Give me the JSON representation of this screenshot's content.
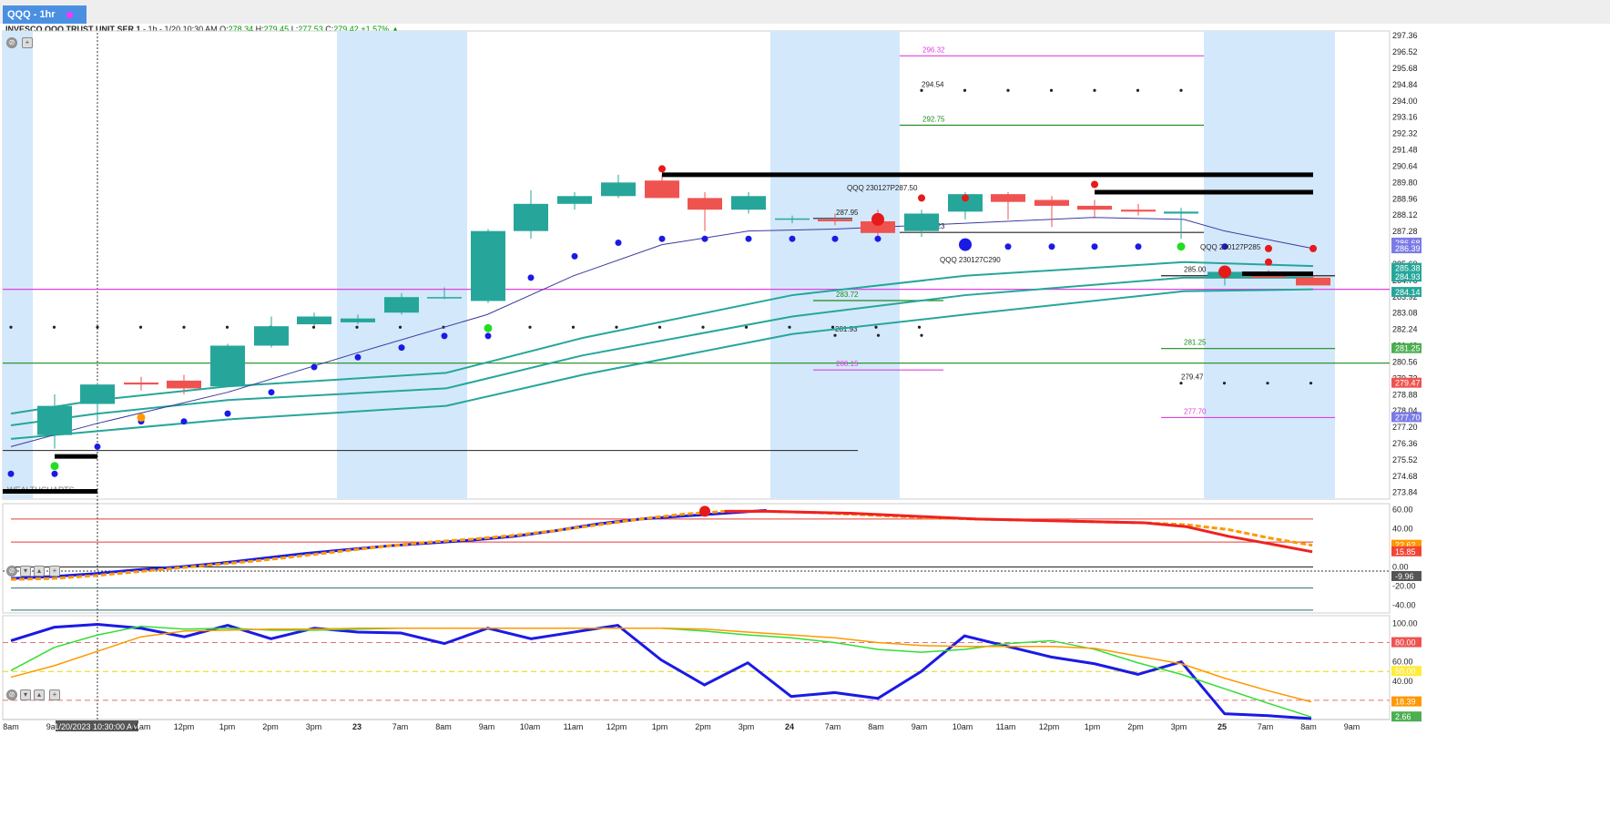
{
  "tab": {
    "label": "QQQ - 1hr"
  },
  "info": {
    "name": "INVESCO QQQ TRUST UNIT SER 1",
    "details": "- 1h - 1/20 10:30 AM O:",
    "open": "278.34",
    "high_label": "H:",
    "high": "279.45",
    "low_label": "L:",
    "low": "277.53",
    "close_label": "C:",
    "close": "279.42",
    "change": "+1.57%",
    "arrow": "▲"
  },
  "watermark": "WEALTHCHARTS",
  "cursor_label": "1/20/2023 10:30:00 AM",
  "colors": {
    "bull": "#26a69a",
    "bear": "#ef5350",
    "shade": "#d3e8fb",
    "magenta": "#e040e0",
    "green": "#1b8a1b"
  },
  "chart_data": [
    {
      "type": "candlestick",
      "y_range": [
        273.5,
        297.6
      ],
      "price_axis_labels": [
        "297.36",
        "296.52",
        "295.68",
        "294.84",
        "294.00",
        "293.16",
        "292.32",
        "291.48",
        "290.64",
        "289.80",
        "288.96",
        "288.12",
        "287.28",
        "286.44",
        "285.60",
        "284.76",
        "283.92",
        "283.08",
        "282.24",
        "281.40",
        "280.56",
        "279.72",
        "278.88",
        "278.04",
        "277.20",
        "276.36",
        "275.52",
        "274.68",
        "273.84"
      ],
      "time_axis_labels": [
        "8am",
        "9am",
        "1/20/2023 10:30:00 AM",
        "11am",
        "12pm",
        "1pm",
        "2pm",
        "3pm",
        "23",
        "7am",
        "8am",
        "9am",
        "10am",
        "11am",
        "12pm",
        "1pm",
        "2pm",
        "3pm",
        "24",
        "7am",
        "8am",
        "9am",
        "10am",
        "11am",
        "12pm",
        "1pm",
        "2pm",
        "3pm",
        "25",
        "7am",
        "8am",
        "9am"
      ],
      "candles": [
        {
          "o": 276.8,
          "h": 278.9,
          "l": 276.1,
          "c": 278.3
        },
        {
          "o": 278.4,
          "h": 279.5,
          "l": 277.5,
          "c": 279.4
        },
        {
          "o": 279.5,
          "h": 279.8,
          "l": 279.1,
          "c": 279.4
        },
        {
          "o": 279.6,
          "h": 279.9,
          "l": 278.9,
          "c": 279.2
        },
        {
          "o": 279.3,
          "h": 281.5,
          "l": 279.3,
          "c": 281.4
        },
        {
          "o": 281.4,
          "h": 282.9,
          "l": 281.3,
          "c": 282.4
        },
        {
          "o": 282.5,
          "h": 283.1,
          "l": 282.4,
          "c": 282.9
        },
        {
          "o": 282.6,
          "h": 283.0,
          "l": 282.5,
          "c": 282.8
        },
        {
          "o": 283.1,
          "h": 284.1,
          "l": 283.0,
          "c": 283.9
        },
        {
          "o": 283.9,
          "h": 284.4,
          "l": 283.8,
          "c": 283.9
        },
        {
          "o": 283.7,
          "h": 287.4,
          "l": 283.6,
          "c": 287.3
        },
        {
          "o": 287.3,
          "h": 289.4,
          "l": 286.9,
          "c": 288.7
        },
        {
          "o": 288.7,
          "h": 289.3,
          "l": 288.4,
          "c": 289.1
        },
        {
          "o": 289.1,
          "h": 290.2,
          "l": 289.0,
          "c": 289.8
        },
        {
          "o": 289.9,
          "h": 290.2,
          "l": 289.0,
          "c": 289.0
        },
        {
          "o": 289.0,
          "h": 289.3,
          "l": 287.3,
          "c": 288.4
        },
        {
          "o": 288.4,
          "h": 289.3,
          "l": 288.2,
          "c": 289.1
        },
        {
          "o": 287.9,
          "h": 288.1,
          "l": 287.7,
          "c": 287.95
        },
        {
          "o": 287.9,
          "h": 288.2,
          "l": 287.6,
          "c": 287.8
        },
        {
          "o": 287.8,
          "h": 288.4,
          "l": 286.9,
          "c": 287.2
        },
        {
          "o": 287.3,
          "h": 288.4,
          "l": 287.0,
          "c": 288.2
        },
        {
          "o": 288.3,
          "h": 289.3,
          "l": 287.9,
          "c": 289.2
        },
        {
          "o": 289.2,
          "h": 289.3,
          "l": 287.9,
          "c": 288.8
        },
        {
          "o": 288.9,
          "h": 289.1,
          "l": 287.5,
          "c": 288.6
        },
        {
          "o": 288.6,
          "h": 288.9,
          "l": 288.0,
          "c": 288.4
        },
        {
          "o": 288.4,
          "h": 288.7,
          "l": 288.1,
          "c": 288.3
        },
        {
          "o": 288.2,
          "h": 288.5,
          "l": 286.9,
          "c": 288.3
        },
        {
          "o": 284.9,
          "h": 285.2,
          "l": 284.5,
          "c": 285.2
        },
        {
          "o": 285.1,
          "h": 285.3,
          "l": 284.9,
          "c": 284.9
        },
        {
          "o": 284.9,
          "h": 285.0,
          "l": 284.5,
          "c": 284.5
        }
      ],
      "levels": [
        {
          "label": "296.32",
          "value": 296.32,
          "color": "magenta"
        },
        {
          "label": "294.54",
          "value": 294.54,
          "color": "dots"
        },
        {
          "label": "292.75",
          "value": 292.75,
          "color": "green"
        },
        {
          "label": "287.95",
          "value": 287.95,
          "color": "dark"
        },
        {
          "label": "287.23",
          "value": 287.23,
          "color": "dark"
        },
        {
          "label": "285.00",
          "value": 285.0,
          "color": "dark"
        },
        {
          "label": "283.72",
          "value": 283.72,
          "color": "green"
        },
        {
          "label": "281.93",
          "value": 281.93,
          "color": "dots"
        },
        {
          "label": "281.25",
          "value": 281.25,
          "color": "green"
        },
        {
          "label": "280.15",
          "value": 280.15,
          "color": "magenta"
        },
        {
          "label": "279.47",
          "value": 279.47,
          "color": "dots"
        },
        {
          "label": "277.70",
          "value": 277.7,
          "color": "magenta"
        }
      ],
      "option_labels": [
        "QQQ 230127P287.50",
        "QQQ 230127C290",
        "QQQ 230127P285"
      ],
      "axis_tags": [
        {
          "label": "286.68",
          "value": 286.68,
          "color": "#7b7be6"
        },
        {
          "label": "286.39",
          "value": 286.39,
          "color": "#7b7be6"
        },
        {
          "label": "285.38",
          "value": 285.38,
          "color": "#26a69a"
        },
        {
          "label": "284.93",
          "value": 284.93,
          "color": "#26a69a"
        },
        {
          "label": "284.14",
          "value": 284.14,
          "color": "#26a69a"
        },
        {
          "label": "281.25",
          "value": 281.25,
          "color": "#4caf50"
        },
        {
          "label": "279.47",
          "value": 279.47,
          "color": "#ef5350"
        },
        {
          "label": "277.70",
          "value": 277.7,
          "color": "#7b7be6"
        }
      ]
    },
    {
      "type": "line",
      "y_range": [
        -48,
        66
      ],
      "axis_labels": [
        "60.00",
        "40.00",
        "20.00",
        "0.00",
        "-20.00",
        "-40.00"
      ],
      "axis_tags": [
        {
          "label": "22.62",
          "value": 22.62,
          "color": "#ff9800"
        },
        {
          "label": "15.85",
          "value": 15.85,
          "color": "#f44336"
        },
        {
          "label": "-9.96",
          "value": -9.96,
          "color": "#555555"
        }
      ],
      "series": [
        {
          "color": "blue",
          "values": [
            -12,
            -10,
            -7,
            -3,
            0,
            4,
            9,
            14,
            18,
            22,
            25,
            28,
            32,
            38,
            45,
            50,
            53,
            56,
            59
          ]
        },
        {
          "color": "orange",
          "values": [
            -13,
            -12,
            -9,
            -5,
            -1,
            3,
            7,
            12,
            17,
            22,
            26,
            29,
            33,
            38,
            44,
            50,
            55,
            58,
            58,
            57,
            55,
            53,
            51,
            50,
            49,
            48,
            47,
            46,
            44,
            39,
            30,
            22.6
          ]
        },
        {
          "color": "red",
          "values": [
            null,
            null,
            null,
            null,
            null,
            null,
            null,
            null,
            null,
            null,
            null,
            null,
            null,
            null,
            null,
            null,
            null,
            58,
            58,
            57,
            56,
            54,
            52,
            50,
            49,
            48,
            47,
            46,
            42,
            32,
            24,
            15.85
          ]
        }
      ]
    },
    {
      "type": "line",
      "y_range": [
        0,
        108
      ],
      "axis_labels": [
        "100.00",
        "80.00",
        "60.00",
        "40.00",
        "20.00"
      ],
      "axis_tags": [
        {
          "label": "80.00",
          "value": 80,
          "color": "#ef5350"
        },
        {
          "label": "50.00",
          "value": 50,
          "color": "#ffeb3b"
        },
        {
          "label": "18.39",
          "value": 18.39,
          "color": "#ff9800"
        },
        {
          "label": "2.66",
          "value": 2.66,
          "color": "#4caf50"
        }
      ],
      "series": [
        {
          "color": "blue",
          "values": [
            82,
            96,
            99,
            95,
            86,
            98,
            84,
            95,
            91,
            90,
            79,
            95,
            84,
            91,
            98,
            62,
            36,
            59,
            24,
            28,
            22,
            50,
            87,
            76,
            65,
            58,
            47,
            60,
            6,
            4,
            1
          ]
        },
        {
          "color": "green",
          "values": [
            51,
            75,
            88,
            97,
            94,
            95,
            93,
            93,
            94,
            95,
            95,
            95,
            95,
            95,
            95,
            95,
            92,
            88,
            85,
            80,
            73,
            70,
            73,
            79,
            82,
            73,
            59,
            47,
            32,
            17,
            2.66
          ]
        },
        {
          "color": "orange",
          "values": [
            44,
            56,
            71,
            86,
            92,
            93,
            94,
            94,
            95,
            95,
            95,
            95,
            95,
            95,
            95,
            95,
            94,
            91,
            88,
            85,
            80,
            77,
            76,
            76,
            76,
            74,
            66,
            58,
            43,
            30,
            18.39
          ]
        }
      ]
    }
  ]
}
